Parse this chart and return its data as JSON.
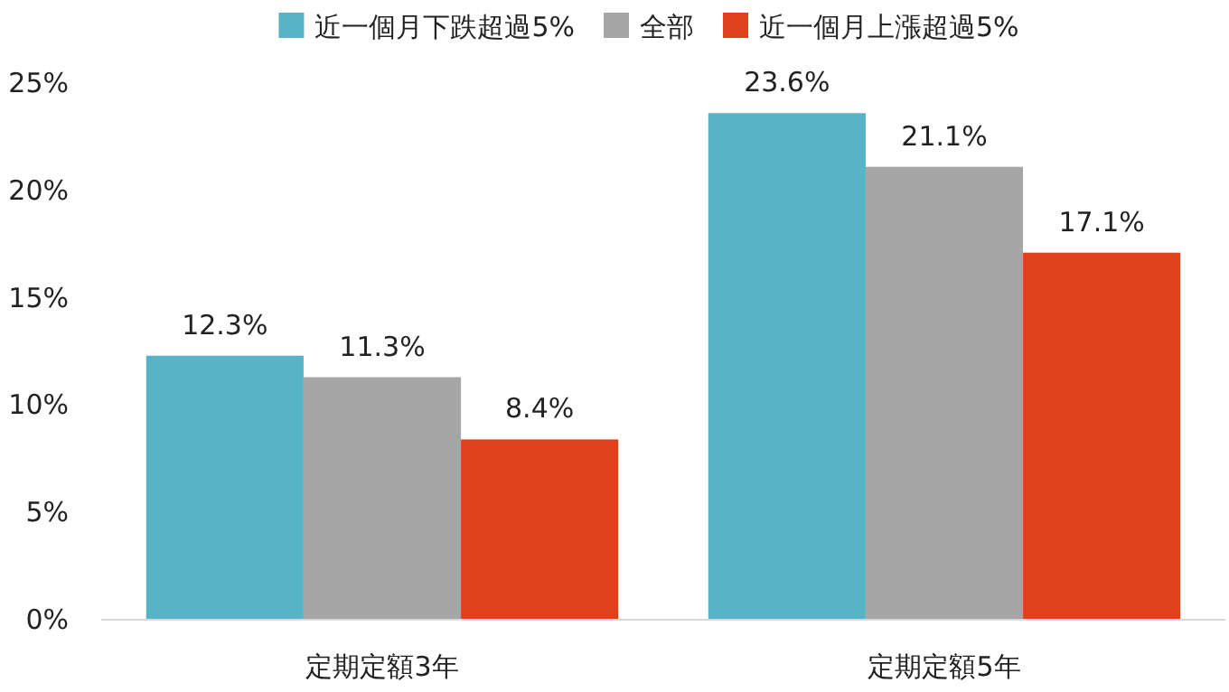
{
  "chart_data": {
    "type": "bar",
    "categories": [
      "定期定額3年",
      "定期定額5年"
    ],
    "series": [
      {
        "name": "近一個月下跌超過5%",
        "color": "#56b4c6",
        "values": [
          12.3,
          23.6
        ],
        "value_labels": [
          "12.3%",
          "23.6%"
        ]
      },
      {
        "name": "全部",
        "color": "#a6a6a6",
        "values": [
          11.3,
          21.1
        ],
        "value_labels": [
          "11.3%",
          "21.1%"
        ]
      },
      {
        "name": "近一個月上漲超過5%",
        "color": "#e0401c",
        "values": [
          8.4,
          17.1
        ],
        "value_labels": [
          "8.4%",
          "17.1%"
        ]
      }
    ],
    "ylim": [
      0,
      25
    ],
    "yticks": [
      {
        "value": 0,
        "label": "0%"
      },
      {
        "value": 5,
        "label": "5%"
      },
      {
        "value": 10,
        "label": "10%"
      },
      {
        "value": 15,
        "label": "15%"
      },
      {
        "value": 20,
        "label": "20%"
      },
      {
        "value": 25,
        "label": "25%"
      }
    ],
    "grid": false,
    "legend": "top"
  }
}
